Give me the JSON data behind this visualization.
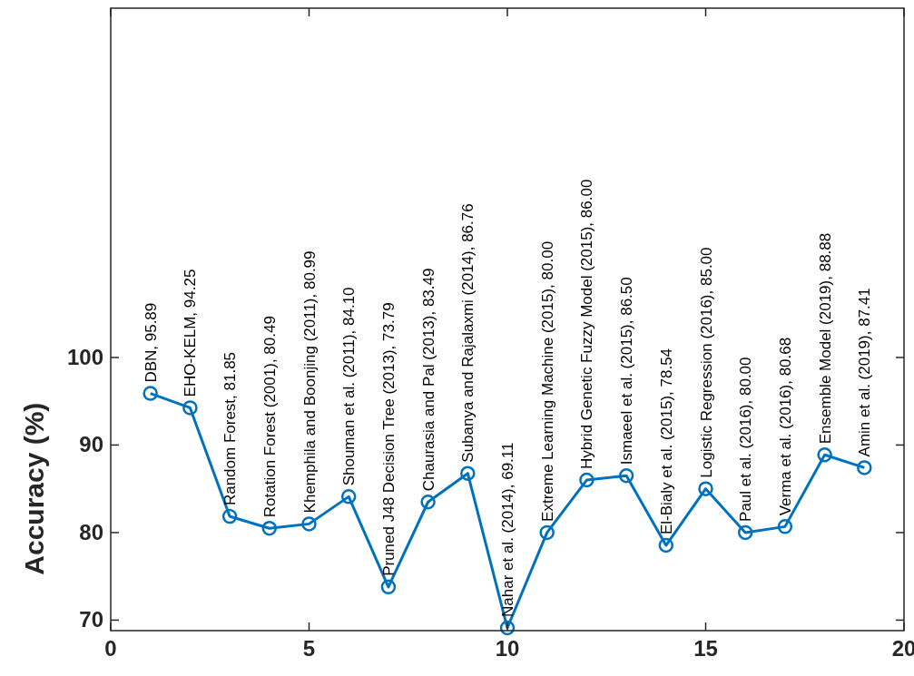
{
  "chart_data": {
    "type": "line",
    "ylabel": "Accuracy (%)",
    "x": [
      1,
      2,
      3,
      4,
      5,
      6,
      7,
      8,
      9,
      10,
      11,
      12,
      13,
      14,
      15,
      16,
      17,
      18,
      19
    ],
    "series": [
      {
        "color": "#0072bd",
        "values": [
          95.89,
          94.25,
          81.85,
          80.49,
          80.99,
          84.1,
          73.79,
          83.49,
          86.76,
          69.11,
          80.0,
          86.0,
          86.5,
          78.54,
          85.0,
          80.0,
          80.68,
          88.88,
          87.41
        ]
      }
    ],
    "xlim": [
      0,
      20
    ],
    "xticks": [
      0,
      5,
      10,
      15,
      20
    ],
    "ylim": [
      68.8,
      140
    ],
    "yticks": [
      70,
      80,
      90,
      100
    ],
    "grid": false,
    "marker": "circle",
    "line_style": "solid",
    "annotations": [
      {
        "text": "DBN, 95.89",
        "x": 1,
        "y": 95.89
      },
      {
        "text": "EHO-KELM, 94.25",
        "x": 2,
        "y": 94.25
      },
      {
        "text": "Random Forest, 81.85",
        "x": 3,
        "y": 81.85
      },
      {
        "text": "Rotation Forest (2001), 80.49",
        "x": 4,
        "y": 80.49
      },
      {
        "text": "Khemphila and Boonjing (2011), 80.99",
        "x": 5,
        "y": 80.99
      },
      {
        "text": "Shouman et al. (2011), 84.10",
        "x": 6,
        "y": 84.1
      },
      {
        "text": "Pruned J48 Decision Tree (2013), 73.79",
        "x": 7,
        "y": 73.79
      },
      {
        "text": "Chaurasia and Pal (2013), 83.49",
        "x": 8,
        "y": 83.49
      },
      {
        "text": "Subanya and Rajalaxmi (2014), 86.76",
        "x": 9,
        "y": 86.76
      },
      {
        "text": "Nahar et al. (2014), 69.11",
        "x": 10,
        "y": 69.11
      },
      {
        "text": "Extreme Learning Machine (2015), 80.00",
        "x": 11,
        "y": 80.0
      },
      {
        "text": "Hybrid Genetic Fuzzy Model (2015), 86.00",
        "x": 12,
        "y": 86.0
      },
      {
        "text": "Ismaeel et al. (2015), 86.50",
        "x": 13,
        "y": 86.5
      },
      {
        "text": "El-Bialy et al. (2015), 78.54",
        "x": 14,
        "y": 78.54
      },
      {
        "text": "Logistic Regression (2016), 85.00",
        "x": 15,
        "y": 85.0
      },
      {
        "text": "Paul et al. (2016), 80.00",
        "x": 16,
        "y": 80.0
      },
      {
        "text": "Verma et al. (2016), 80.68",
        "x": 17,
        "y": 80.68
      },
      {
        "text": "Ensemble Model (2019), 88.88",
        "x": 18,
        "y": 88.88
      },
      {
        "text": "Amin et al. (2019), 87.41",
        "x": 19,
        "y": 87.41
      }
    ]
  }
}
